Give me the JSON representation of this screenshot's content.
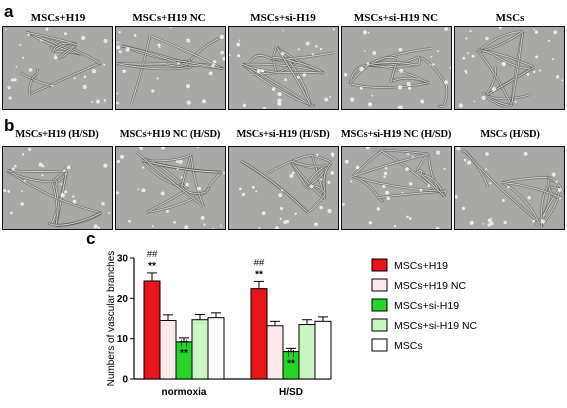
{
  "figure": {
    "panel_labels": {
      "a": "a",
      "b": "b",
      "c": "c"
    },
    "row_a": [
      {
        "label": "MSCs+H19"
      },
      {
        "label": "MSCs+H19 NC"
      },
      {
        "label": "MSCs+si-H19"
      },
      {
        "label": "MSCs+si-H19 NC"
      },
      {
        "label": "MSCs"
      }
    ],
    "row_b": [
      {
        "label": "MSCs+H19 (H/SD)"
      },
      {
        "label": "MSCs+H19 NC (H/SD)"
      },
      {
        "label": "MSCs+si-H19 (H/SD)"
      },
      {
        "label": "MSCs+si-H19 NC (H/SD)"
      },
      {
        "label": "MSCs (H/SD)"
      }
    ]
  },
  "chart_data": {
    "type": "bar",
    "ylabel": "Numbers of vascular branches",
    "ylim": [
      0,
      30
    ],
    "yticks": [
      0,
      10,
      20,
      30
    ],
    "categories": [
      "normoxia",
      "H/SD"
    ],
    "legend_position": "right",
    "series": [
      {
        "name": "MSCs+H19",
        "color": "#e8141b",
        "values": [
          24.3,
          22.4
        ],
        "errors": [
          2.0,
          1.8
        ],
        "annotations": [
          [
            "##",
            "**"
          ],
          [
            "##",
            "**"
          ]
        ]
      },
      {
        "name": "MSCs+H19 NC",
        "color": "#fbe9ec",
        "values": [
          14.5,
          13.2
        ],
        "errors": [
          1.4,
          1.1
        ],
        "annotations": [
          [],
          []
        ]
      },
      {
        "name": "MSCs+si-H19",
        "color": "#27d52a",
        "values": [
          9.2,
          6.8
        ],
        "errors": [
          1.0,
          0.8
        ],
        "annotations": [
          [
            "††",
            "**"
          ],
          [
            "††",
            "**"
          ]
        ]
      },
      {
        "name": "MSCs+si-H19 NC",
        "color": "#c8f5c2",
        "values": [
          14.7,
          13.5
        ],
        "errors": [
          1.3,
          1.2
        ],
        "annotations": [
          [],
          []
        ]
      },
      {
        "name": "MSCs",
        "color": "#ffffff",
        "values": [
          15.2,
          14.3
        ],
        "errors": [
          1.2,
          1.1
        ],
        "annotations": [
          [],
          []
        ]
      }
    ]
  }
}
